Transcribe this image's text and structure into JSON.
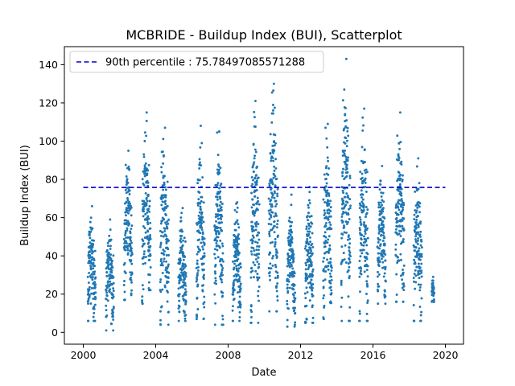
{
  "chart_data": {
    "type": "scatter",
    "title": "MCBRIDE - Buildup Index (BUI), Scatterplot",
    "xlabel": "Date",
    "ylabel": "Buildup Index (BUI)",
    "xlim": [
      2000.0,
      2020.0
    ],
    "ylim": [
      -6,
      149
    ],
    "x_ticks": [
      "2000",
      "2004",
      "2008",
      "2012",
      "2016",
      "2020"
    ],
    "y_ticks": [
      "0",
      "20",
      "40",
      "60",
      "80",
      "100",
      "120",
      "140"
    ],
    "grid": false,
    "legend_position": "top-left",
    "reference_line": {
      "label": "90th percentile : 75.78497085571288",
      "value": 75.78497085571288,
      "x_range": [
        2000.0,
        2020.0
      ],
      "color": "#0000cc",
      "style": "dashed"
    },
    "series_color": "#1f77b4",
    "fire_seasons": [
      {
        "year": "2000",
        "start": 2000.25,
        "end": 2000.68,
        "min": 6,
        "max": 66
      },
      {
        "year": "2001",
        "start": 2001.25,
        "end": 2001.68,
        "min": 1,
        "max": 59
      },
      {
        "year": "2002",
        "start": 2002.25,
        "end": 2002.7,
        "min": 17,
        "max": 95
      },
      {
        "year": "2003",
        "start": 2003.25,
        "end": 2003.72,
        "min": 15,
        "max": 115
      },
      {
        "year": "2004",
        "start": 2004.25,
        "end": 2004.72,
        "min": 4,
        "max": 107
      },
      {
        "year": "2005",
        "start": 2005.25,
        "end": 2005.68,
        "min": 6,
        "max": 65
      },
      {
        "year": "2006",
        "start": 2006.25,
        "end": 2006.7,
        "min": 7,
        "max": 108
      },
      {
        "year": "2007",
        "start": 2007.25,
        "end": 2007.72,
        "min": 4,
        "max": 105
      },
      {
        "year": "2008",
        "start": 2008.25,
        "end": 2008.7,
        "min": 6,
        "max": 68
      },
      {
        "year": "2009",
        "start": 2009.25,
        "end": 2009.72,
        "min": 5,
        "max": 121
      },
      {
        "year": "2010",
        "start": 2010.25,
        "end": 2010.75,
        "min": 11,
        "max": 130
      },
      {
        "year": "2011",
        "start": 2011.25,
        "end": 2011.7,
        "min": 3,
        "max": 72
      },
      {
        "year": "2012",
        "start": 2012.25,
        "end": 2012.7,
        "min": 5,
        "max": 76
      },
      {
        "year": "2013",
        "start": 2013.25,
        "end": 2013.72,
        "min": 7,
        "max": 109
      },
      {
        "year": "2014",
        "start": 2014.25,
        "end": 2014.75,
        "min": 6,
        "max": 143
      },
      {
        "year": "2015",
        "start": 2015.25,
        "end": 2015.72,
        "min": 6,
        "max": 117
      },
      {
        "year": "2016",
        "start": 2016.25,
        "end": 2016.7,
        "min": 15,
        "max": 87
      },
      {
        "year": "2017",
        "start": 2017.25,
        "end": 2017.72,
        "min": 16,
        "max": 115
      },
      {
        "year": "2018",
        "start": 2018.25,
        "end": 2018.7,
        "min": 6,
        "max": 91
      },
      {
        "year": "2019",
        "start": 2019.25,
        "end": 2019.38,
        "min": 16,
        "max": 29
      }
    ]
  }
}
